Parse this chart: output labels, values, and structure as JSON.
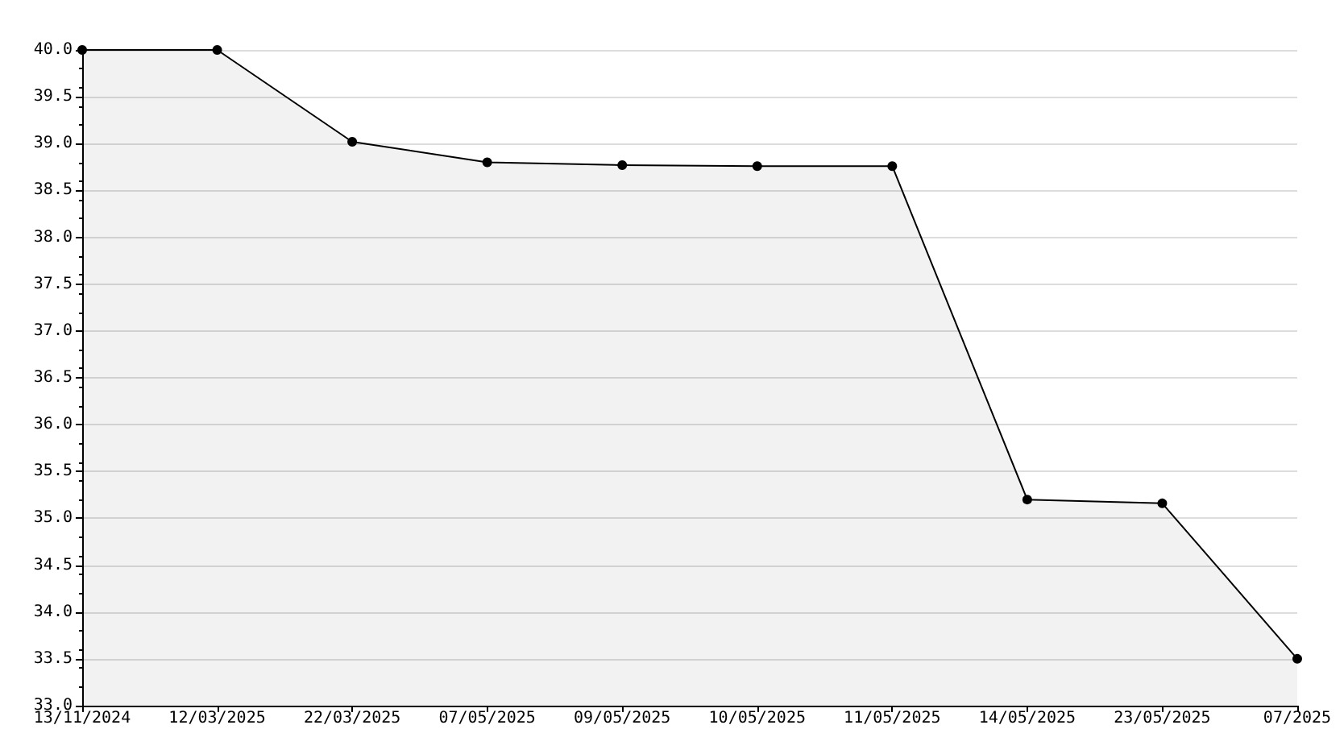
{
  "chart_data": {
    "type": "area",
    "categories": [
      "13/11/2024",
      "12/03/2025",
      "22/03/2025",
      "07/05/2025",
      "09/05/2025",
      "10/05/2025",
      "11/05/2025",
      "14/05/2025",
      "23/05/2025",
      "07/2025"
    ],
    "series": [
      {
        "color": "#000000",
        "values": [
          40,
          40,
          39.02,
          38.8,
          38.77,
          38.76,
          38.76,
          35.2,
          35.16,
          33.5
        ]
      }
    ],
    "ylim": [
      33,
      40
    ],
    "yticks": [
      {
        "value": 33,
        "label": "33.0"
      },
      {
        "value": 33.5,
        "label": "33.5"
      },
      {
        "value": 34,
        "label": "34.0"
      },
      {
        "value": 34.5,
        "label": "34.5"
      },
      {
        "value": 35,
        "label": "35.0"
      },
      {
        "value": 35.5,
        "label": "35.5"
      },
      {
        "value": 36,
        "label": "36.0"
      },
      {
        "value": 36.5,
        "label": "36.5"
      },
      {
        "value": 37,
        "label": "37.0"
      },
      {
        "value": 37.5,
        "label": "37.5"
      },
      {
        "value": 38,
        "label": "38.0"
      },
      {
        "value": 38.5,
        "label": "38.5"
      },
      {
        "value": 39,
        "label": "39.0"
      },
      {
        "value": 39.5,
        "label": "39.5"
      },
      {
        "value": 40,
        "label": "40.0"
      }
    ],
    "grid": "y",
    "marker": "circle",
    "line_style": "solid"
  }
}
